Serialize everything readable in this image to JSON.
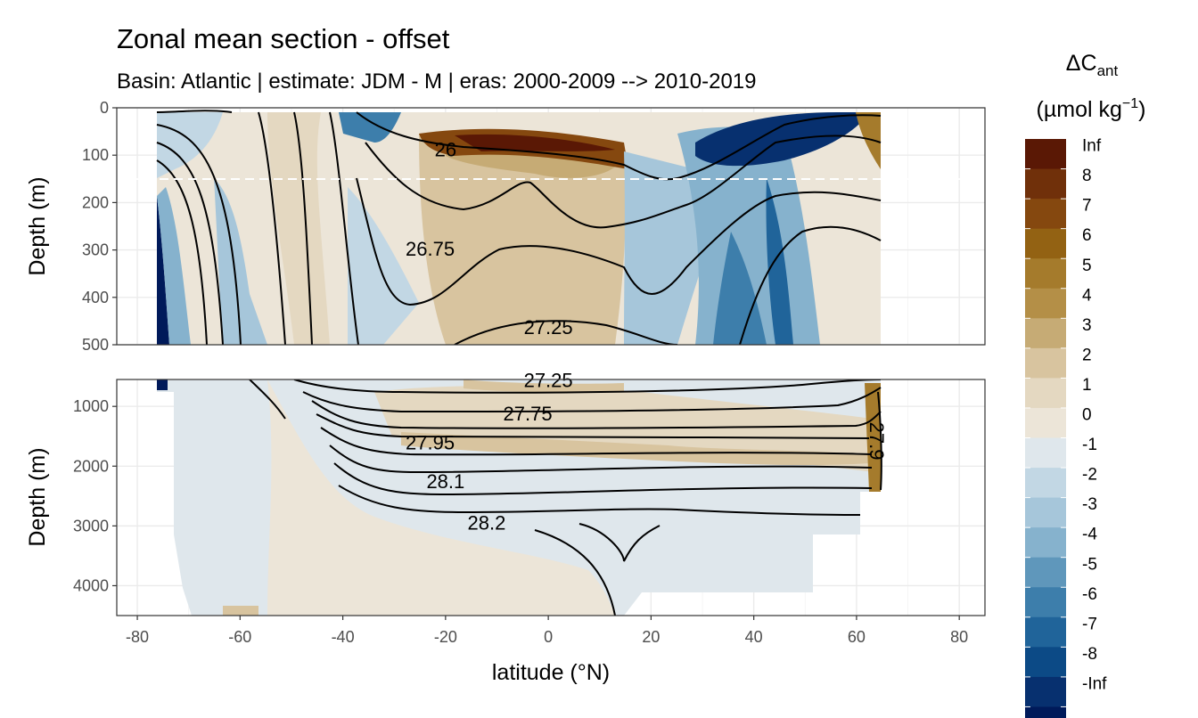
{
  "chart_data": {
    "type": "heatmap",
    "title": "Zonal mean section - offset",
    "subtitle": "Basin: Atlantic | estimate: JDM - M | eras: 2000-2009 --> 2010-2019",
    "xlabel": "latitude (°N)",
    "ylabel": "Depth (m)",
    "x_ticks": [
      -80,
      -60,
      -40,
      -20,
      0,
      20,
      40,
      60,
      80
    ],
    "xlim": [
      -84,
      85
    ],
    "panels": [
      {
        "name": "upper",
        "ylim": [
          0,
          500
        ],
        "y_ticks": [
          0,
          100,
          200,
          300,
          400,
          500
        ],
        "reference_depth": 150
      },
      {
        "name": "lower",
        "ylim": [
          550,
          4500
        ],
        "y_ticks": [
          1000,
          2000,
          3000,
          4000
        ]
      }
    ],
    "legend": {
      "title_main": "ΔC",
      "title_sub": "ant",
      "units_prefix": "(µmol kg",
      "units_sup": "−1",
      "units_suffix": ")",
      "position": "right",
      "labels": [
        "Inf",
        "8",
        "7",
        "6",
        "5",
        "4",
        "3",
        "2",
        "1",
        "0",
        "-1",
        "-2",
        "-3",
        "-4",
        "-5",
        "-6",
        "-7",
        "-8",
        "-Inf"
      ],
      "colors": [
        "#5a1805",
        "#70300a",
        "#85480f",
        "#936213",
        "#a57b2c",
        "#b48f47",
        "#c6ab75",
        "#d8c49f",
        "#e4d8c1",
        "#ece5d8",
        "#dfe7ec",
        "#c2d7e4",
        "#a6c6da",
        "#86b2cd",
        "#5f97bb",
        "#3d7eab",
        "#20649a",
        "#0c4a86",
        "#07306f",
        "#001a5a"
      ]
    },
    "isopycnal_labels": [
      {
        "panel": "upper",
        "text": "26",
        "lat": -20,
        "depth": 87
      },
      {
        "panel": "upper",
        "text": "26.75",
        "lat": -23,
        "depth": 297
      },
      {
        "panel": "upper",
        "text": "27.25",
        "lat": 0,
        "depth": 462
      },
      {
        "panel": "lower",
        "text": "27.25",
        "lat": 0,
        "depth": 560
      },
      {
        "panel": "lower",
        "text": "27.75",
        "lat": -4,
        "depth": 1120
      },
      {
        "panel": "lower",
        "text": "27.95",
        "lat": -23,
        "depth": 1600
      },
      {
        "panel": "lower",
        "text": "28.1",
        "lat": -20,
        "depth": 2250
      },
      {
        "panel": "lower",
        "text": "28.2",
        "lat": -12,
        "depth": 2940
      },
      {
        "panel": "lower",
        "text": "27.9",
        "lat": 64,
        "depth": 1580
      }
    ]
  }
}
